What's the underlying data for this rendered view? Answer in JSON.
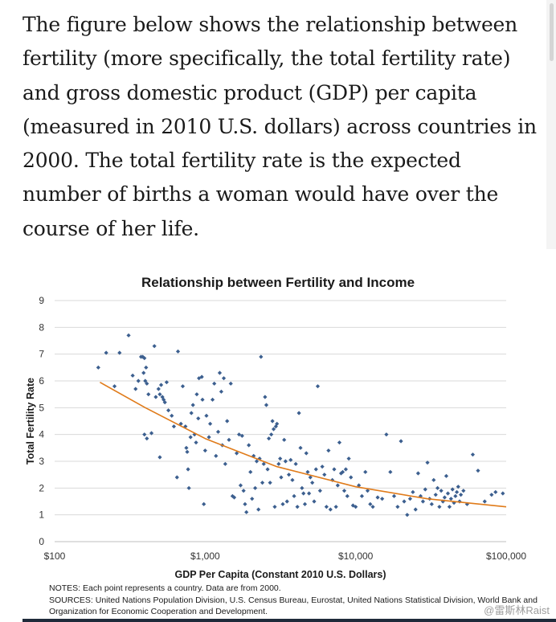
{
  "article": {
    "paragraph": "The figure below shows the relationship between fertility (more specifically, the total fertility rate) and gross domestic product (GDP) per capita (measured in 2010 U.S. dollars) across countries in 2000. The total fertility rate is the expected number of births a woman would have over the course of her life."
  },
  "figure": {
    "notes_line1": "NOTES: Each point represents a country. Data are from 2000.",
    "notes_line2": "SOURCES: United Nations Population Division, U.S. Census Bureau, Eurostat, United Nations Statistical Division, World Bank and",
    "notes_line3": "Organization for Economic Cooperation and Development.",
    "watermark": "@雷斯林Raist"
  },
  "colors": {
    "points": "#3c5f8f",
    "trend": "#e07b1a",
    "grid": "#d9d9d9"
  },
  "chart_data": {
    "type": "scatter",
    "title": "Relationship between Fertility and Income",
    "xlabel": "GDP Per Capita (Constant  2010 U.S. Dollars)",
    "ylabel": "Total Fertility Rate",
    "xscale": "log",
    "xlim": [
      100,
      100000
    ],
    "ylim": [
      0,
      9
    ],
    "xticks": [
      100,
      1000,
      10000,
      100000
    ],
    "xtick_labels": [
      "$100",
      "$1,000",
      "$10,000",
      "$100,000"
    ],
    "yticks": [
      0,
      1,
      2,
      3,
      4,
      5,
      6,
      7,
      8,
      9
    ],
    "grid": true,
    "trend": {
      "type": "exponential-in-log-x",
      "points": [
        [
          200,
          5.95
        ],
        [
          400,
          5.0
        ],
        [
          1000,
          3.85
        ],
        [
          3000,
          2.8
        ],
        [
          10000,
          2.05
        ],
        [
          30000,
          1.6
        ],
        [
          100000,
          1.3
        ]
      ]
    },
    "points": [
      [
        195,
        6.5
      ],
      [
        220,
        7.05
      ],
      [
        250,
        5.8
      ],
      [
        270,
        7.05
      ],
      [
        310,
        7.7
      ],
      [
        330,
        6.2
      ],
      [
        345,
        5.7
      ],
      [
        360,
        6.0
      ],
      [
        375,
        6.9
      ],
      [
        385,
        6.9
      ],
      [
        395,
        6.85
      ],
      [
        405,
        6.5
      ],
      [
        390,
        6.3
      ],
      [
        400,
        6.0
      ],
      [
        410,
        5.9
      ],
      [
        420,
        5.5
      ],
      [
        395,
        4.0
      ],
      [
        410,
        3.85
      ],
      [
        440,
        4.05
      ],
      [
        460,
        7.3
      ],
      [
        470,
        5.4
      ],
      [
        490,
        5.7
      ],
      [
        510,
        5.85
      ],
      [
        500,
        5.5
      ],
      [
        520,
        5.4
      ],
      [
        530,
        5.3
      ],
      [
        540,
        5.2
      ],
      [
        555,
        5.95
      ],
      [
        500,
        3.15
      ],
      [
        570,
        4.9
      ],
      [
        600,
        4.7
      ],
      [
        620,
        4.3
      ],
      [
        650,
        2.4
      ],
      [
        660,
        7.1
      ],
      [
        690,
        4.4
      ],
      [
        710,
        5.8
      ],
      [
        740,
        4.3
      ],
      [
        750,
        3.5
      ],
      [
        760,
        3.35
      ],
      [
        770,
        2.7
      ],
      [
        780,
        2.0
      ],
      [
        800,
        3.9
      ],
      [
        810,
        4.8
      ],
      [
        830,
        5.1
      ],
      [
        850,
        4.0
      ],
      [
        870,
        3.7
      ],
      [
        880,
        5.5
      ],
      [
        900,
        4.6
      ],
      [
        910,
        6.1
      ],
      [
        950,
        6.15
      ],
      [
        960,
        5.3
      ],
      [
        980,
        1.4
      ],
      [
        1000,
        3.4
      ],
      [
        1020,
        4.7
      ],
      [
        1060,
        3.9
      ],
      [
        1080,
        4.4
      ],
      [
        1120,
        5.3
      ],
      [
        1150,
        5.9
      ],
      [
        1180,
        3.2
      ],
      [
        1220,
        4.1
      ],
      [
        1250,
        6.3
      ],
      [
        1280,
        5.6
      ],
      [
        1300,
        3.6
      ],
      [
        1330,
        6.1
      ],
      [
        1360,
        2.9
      ],
      [
        1400,
        4.5
      ],
      [
        1440,
        3.8
      ],
      [
        1480,
        5.9
      ],
      [
        1520,
        1.7
      ],
      [
        1560,
        1.65
      ],
      [
        1620,
        3.3
      ],
      [
        1680,
        4.0
      ],
      [
        1720,
        2.1
      ],
      [
        1760,
        3.95
      ],
      [
        1800,
        1.9
      ],
      [
        1840,
        1.4
      ],
      [
        1880,
        1.1
      ],
      [
        1950,
        3.6
      ],
      [
        2000,
        2.6
      ],
      [
        2050,
        1.6
      ],
      [
        2100,
        3.2
      ],
      [
        2150,
        2.0
      ],
      [
        2200,
        3.0
      ],
      [
        2260,
        1.2
      ],
      [
        2300,
        3.1
      ],
      [
        2350,
        6.9
      ],
      [
        2400,
        2.2
      ],
      [
        2450,
        2.9
      ],
      [
        2500,
        5.4
      ],
      [
        2550,
        5.1
      ],
      [
        2600,
        2.7
      ],
      [
        2650,
        3.85
      ],
      [
        2700,
        2.2
      ],
      [
        2750,
        4.0
      ],
      [
        2800,
        4.5
      ],
      [
        2850,
        4.2
      ],
      [
        2900,
        1.3
      ],
      [
        2950,
        4.3
      ],
      [
        3000,
        4.4
      ],
      [
        3080,
        2.9
      ],
      [
        3150,
        3.1
      ],
      [
        3200,
        2.4
      ],
      [
        3280,
        1.4
      ],
      [
        3350,
        3.8
      ],
      [
        3420,
        3.0
      ],
      [
        3500,
        1.5
      ],
      [
        3600,
        2.5
      ],
      [
        3700,
        3.05
      ],
      [
        3800,
        2.3
      ],
      [
        3900,
        1.7
      ],
      [
        4000,
        2.9
      ],
      [
        4100,
        1.3
      ],
      [
        4200,
        4.8
      ],
      [
        4300,
        3.5
      ],
      [
        4400,
        2.0
      ],
      [
        4500,
        1.8
      ],
      [
        4600,
        1.4
      ],
      [
        4700,
        3.3
      ],
      [
        4800,
        2.6
      ],
      [
        4900,
        1.8
      ],
      [
        5000,
        2.4
      ],
      [
        5150,
        2.2
      ],
      [
        5300,
        1.5
      ],
      [
        5450,
        2.7
      ],
      [
        5600,
        5.8
      ],
      [
        5800,
        1.9
      ],
      [
        6000,
        2.8
      ],
      [
        6200,
        2.5
      ],
      [
        6400,
        1.3
      ],
      [
        6600,
        3.4
      ],
      [
        6800,
        1.2
      ],
      [
        7000,
        2.3
      ],
      [
        7200,
        2.7
      ],
      [
        7400,
        1.3
      ],
      [
        7600,
        2.1
      ],
      [
        7800,
        3.7
      ],
      [
        8000,
        2.55
      ],
      [
        8200,
        2.6
      ],
      [
        8400,
        1.9
      ],
      [
        8600,
        2.7
      ],
      [
        8800,
        1.7
      ],
      [
        9000,
        3.1
      ],
      [
        9300,
        2.4
      ],
      [
        9600,
        1.35
      ],
      [
        10000,
        1.3
      ],
      [
        10500,
        2.1
      ],
      [
        11000,
        1.7
      ],
      [
        11600,
        2.6
      ],
      [
        12000,
        1.9
      ],
      [
        12500,
        1.4
      ],
      [
        13000,
        1.3
      ],
      [
        14000,
        1.65
      ],
      [
        15000,
        1.6
      ],
      [
        16000,
        4.0
      ],
      [
        17000,
        2.6
      ],
      [
        18000,
        1.7
      ],
      [
        19000,
        1.3
      ],
      [
        20000,
        3.75
      ],
      [
        21000,
        1.5
      ],
      [
        22000,
        1.0
      ],
      [
        23000,
        1.6
      ],
      [
        24000,
        1.85
      ],
      [
        25000,
        1.2
      ],
      [
        26000,
        2.55
      ],
      [
        27000,
        1.7
      ],
      [
        28000,
        1.5
      ],
      [
        29000,
        1.95
      ],
      [
        30000,
        2.95
      ],
      [
        31000,
        1.6
      ],
      [
        32000,
        1.4
      ],
      [
        33000,
        2.3
      ],
      [
        34000,
        1.75
      ],
      [
        35000,
        2.0
      ],
      [
        36000,
        1.3
      ],
      [
        37000,
        1.9
      ],
      [
        38000,
        1.5
      ],
      [
        39000,
        1.65
      ],
      [
        40000,
        2.45
      ],
      [
        41000,
        1.8
      ],
      [
        42000,
        1.3
      ],
      [
        43000,
        1.6
      ],
      [
        44000,
        1.95
      ],
      [
        45000,
        1.45
      ],
      [
        46000,
        1.7
      ],
      [
        47000,
        1.85
      ],
      [
        48000,
        2.05
      ],
      [
        49000,
        1.5
      ],
      [
        50000,
        1.75
      ],
      [
        52000,
        1.9
      ],
      [
        55000,
        1.4
      ],
      [
        60000,
        3.25
      ],
      [
        65000,
        2.65
      ],
      [
        72000,
        1.5
      ],
      [
        80000,
        1.75
      ],
      [
        85000,
        1.85
      ],
      [
        95000,
        1.8
      ]
    ]
  }
}
